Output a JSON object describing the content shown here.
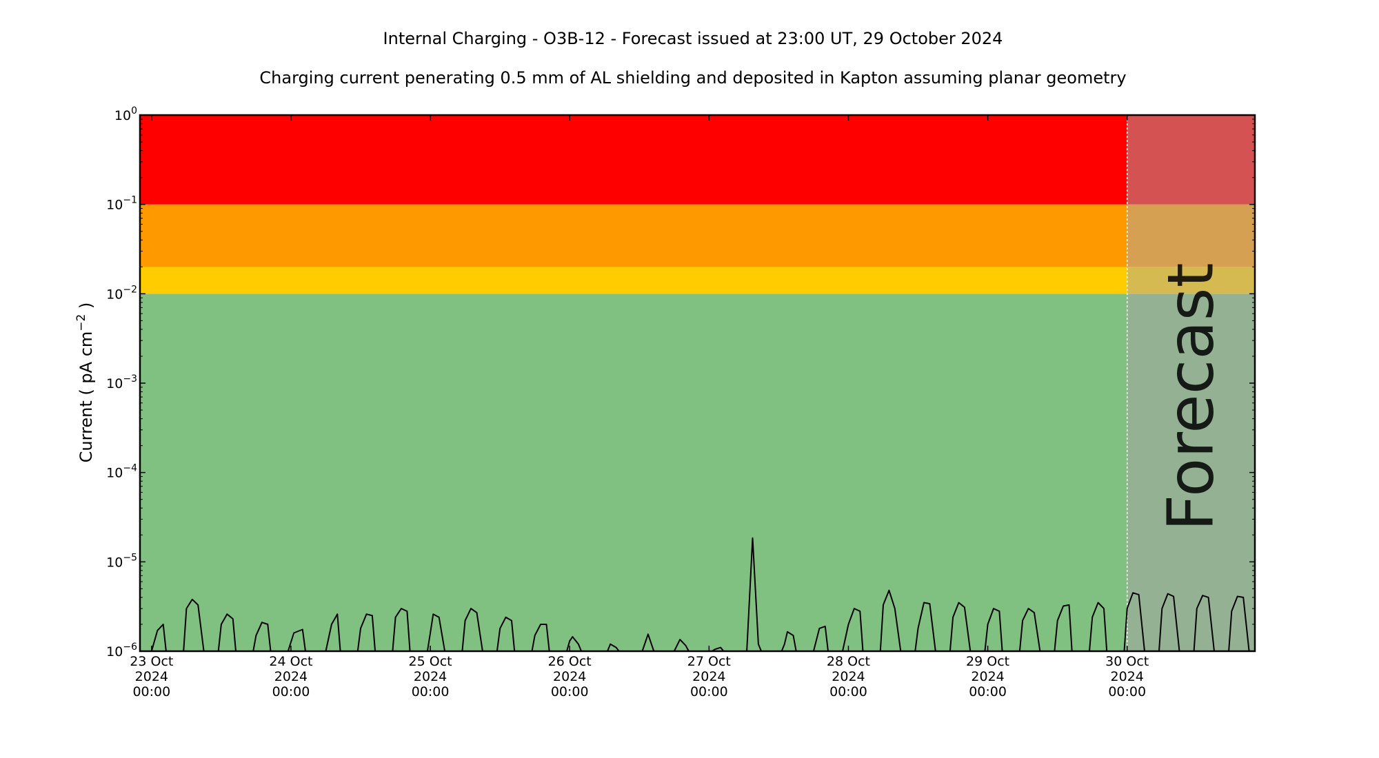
{
  "chart_data": {
    "type": "line",
    "title": "Internal Charging - O3B-12 - Forecast issued at 23:00 UT, 29 October 2024",
    "subtitle": "Charging current penerating 0.5 mm of AL shielding and deposited in Kapton assuming planar geometry",
    "ylabel_main": "Current ( pA cm",
    "ylabel_exp": "−2",
    "ylabel_end": " )",
    "yscale": "log",
    "ylim": [
      1e-06,
      1
    ],
    "y_ticks": [
      {
        "value": 1e-06,
        "base": "10",
        "exp": "−6"
      },
      {
        "value": 1e-05,
        "base": "10",
        "exp": "−5"
      },
      {
        "value": 0.0001,
        "base": "10",
        "exp": "−4"
      },
      {
        "value": 0.001,
        "base": "10",
        "exp": "−3"
      },
      {
        "value": 0.01,
        "base": "10",
        "exp": "−2"
      },
      {
        "value": 0.1,
        "base": "10",
        "exp": "−1"
      },
      {
        "value": 1,
        "base": "10",
        "exp": "0"
      }
    ],
    "xlim": [
      "2024-10-22T22:00",
      "2024-10-30T22:00"
    ],
    "x_ticks": [
      {
        "value": "2024-10-23T00:00",
        "line1": "23 Oct",
        "line2": "2024",
        "line3": "00:00"
      },
      {
        "value": "2024-10-24T00:00",
        "line1": "24 Oct",
        "line2": "2024",
        "line3": "00:00"
      },
      {
        "value": "2024-10-25T00:00",
        "line1": "25 Oct",
        "line2": "2024",
        "line3": "00:00"
      },
      {
        "value": "2024-10-26T00:00",
        "line1": "26 Oct",
        "line2": "2024",
        "line3": "00:00"
      },
      {
        "value": "2024-10-27T00:00",
        "line1": "27 Oct",
        "line2": "2024",
        "line3": "00:00"
      },
      {
        "value": "2024-10-28T00:00",
        "line1": "28 Oct",
        "line2": "2024",
        "line3": "00:00"
      },
      {
        "value": "2024-10-29T00:00",
        "line1": "29 Oct",
        "line2": "2024",
        "line3": "00:00"
      },
      {
        "value": "2024-10-30T00:00",
        "line1": "30 Oct",
        "line2": "2024",
        "line3": "00:00"
      }
    ],
    "forecast_start": "2024-10-30T00:00",
    "forecast_label": "Forecast",
    "grid": false,
    "bands": [
      {
        "level": "green",
        "from": 1e-06,
        "to": 0.01,
        "color": "#80c080",
        "forecast_color": "#94b194"
      },
      {
        "level": "yellow",
        "from": 0.01,
        "to": 0.02,
        "color": "#ffcc00",
        "forecast_color": "#d5ba52"
      },
      {
        "level": "orange",
        "from": 0.02,
        "to": 0.1,
        "color": "#ff9900",
        "forecast_color": "#d5a052"
      },
      {
        "level": "red",
        "from": 0.1,
        "to": 1,
        "color": "#ff0000",
        "forecast_color": "#d55252"
      }
    ],
    "series": [
      {
        "color": "#000000",
        "points": [
          [
            "2024-10-23T00:00",
            1e-06
          ],
          [
            "2024-10-23T01:00",
            1.7e-06
          ],
          [
            "2024-10-23T02:00",
            2e-06
          ],
          [
            "2024-10-23T02:30",
            1e-06
          ],
          [
            "2024-10-23T05:30",
            1e-06
          ],
          [
            "2024-10-23T06:00",
            3e-06
          ],
          [
            "2024-10-23T07:00",
            3.8e-06
          ],
          [
            "2024-10-23T08:00",
            3.3e-06
          ],
          [
            "2024-10-23T09:00",
            1e-06
          ],
          [
            "2024-10-23T11:30",
            1e-06
          ],
          [
            "2024-10-23T12:00",
            2e-06
          ],
          [
            "2024-10-23T13:00",
            2.6e-06
          ],
          [
            "2024-10-23T14:00",
            2.3e-06
          ],
          [
            "2024-10-23T14:30",
            1e-06
          ],
          [
            "2024-10-23T17:30",
            1e-06
          ],
          [
            "2024-10-23T18:00",
            1.5e-06
          ],
          [
            "2024-10-23T19:00",
            2.1e-06
          ],
          [
            "2024-10-23T20:00",
            2e-06
          ],
          [
            "2024-10-23T20:30",
            1e-06
          ],
          [
            "2024-10-23T23:30",
            1e-06
          ],
          [
            "2024-10-24T00:30",
            1.6e-06
          ],
          [
            "2024-10-24T02:00",
            1.75e-06
          ],
          [
            "2024-10-24T02:30",
            1e-06
          ],
          [
            "2024-10-24T06:00",
            1e-06
          ],
          [
            "2024-10-24T07:00",
            2e-06
          ],
          [
            "2024-10-24T08:00",
            2.6e-06
          ],
          [
            "2024-10-24T08:30",
            1e-06
          ],
          [
            "2024-10-24T11:30",
            1e-06
          ],
          [
            "2024-10-24T12:00",
            1.8e-06
          ],
          [
            "2024-10-24T13:00",
            2.6e-06
          ],
          [
            "2024-10-24T14:00",
            2.5e-06
          ],
          [
            "2024-10-24T14:30",
            1e-06
          ],
          [
            "2024-10-24T17:30",
            1e-06
          ],
          [
            "2024-10-24T18:00",
            2.4e-06
          ],
          [
            "2024-10-24T19:00",
            3e-06
          ],
          [
            "2024-10-24T20:00",
            2.8e-06
          ],
          [
            "2024-10-24T20:30",
            1e-06
          ],
          [
            "2024-10-24T23:30",
            1e-06
          ],
          [
            "2024-10-25T00:00",
            1.6e-06
          ],
          [
            "2024-10-25T00:30",
            2.6e-06
          ],
          [
            "2024-10-25T01:30",
            2.4e-06
          ],
          [
            "2024-10-25T02:30",
            1e-06
          ],
          [
            "2024-10-25T05:30",
            1e-06
          ],
          [
            "2024-10-25T06:00",
            2.2e-06
          ],
          [
            "2024-10-25T07:00",
            3e-06
          ],
          [
            "2024-10-25T08:00",
            2.7e-06
          ],
          [
            "2024-10-25T09:00",
            1e-06
          ],
          [
            "2024-10-25T11:30",
            1e-06
          ],
          [
            "2024-10-25T12:00",
            1.8e-06
          ],
          [
            "2024-10-25T13:00",
            2.4e-06
          ],
          [
            "2024-10-25T14:00",
            2.2e-06
          ],
          [
            "2024-10-25T14:30",
            1e-06
          ],
          [
            "2024-10-25T17:30",
            1e-06
          ],
          [
            "2024-10-25T18:00",
            1.5e-06
          ],
          [
            "2024-10-25T19:00",
            2e-06
          ],
          [
            "2024-10-25T20:00",
            2e-06
          ],
          [
            "2024-10-25T20:30",
            1e-06
          ],
          [
            "2024-10-25T23:30",
            1e-06
          ],
          [
            "2024-10-26T00:00",
            1.3e-06
          ],
          [
            "2024-10-26T00:30",
            1.45e-06
          ],
          [
            "2024-10-26T01:30",
            1.2e-06
          ],
          [
            "2024-10-26T02:00",
            1e-06
          ],
          [
            "2024-10-26T06:30",
            1e-06
          ],
          [
            "2024-10-26T07:00",
            1.2e-06
          ],
          [
            "2024-10-26T08:00",
            1.1e-06
          ],
          [
            "2024-10-26T08:30",
            1e-06
          ],
          [
            "2024-10-26T12:30",
            1e-06
          ],
          [
            "2024-10-26T13:30",
            1.55e-06
          ],
          [
            "2024-10-26T14:30",
            1e-06
          ],
          [
            "2024-10-26T18:00",
            1e-06
          ],
          [
            "2024-10-26T19:00",
            1.35e-06
          ],
          [
            "2024-10-26T20:00",
            1.15e-06
          ],
          [
            "2024-10-26T20:30",
            1e-06
          ],
          [
            "2024-10-27T00:30",
            1e-06
          ],
          [
            "2024-10-27T01:00",
            1.05e-06
          ],
          [
            "2024-10-27T02:00",
            1.1e-06
          ],
          [
            "2024-10-27T02:30",
            1e-06
          ],
          [
            "2024-10-27T06:30",
            1e-06
          ],
          [
            "2024-10-27T07:30",
            1.85e-05
          ],
          [
            "2024-10-27T08:30",
            1.2e-06
          ],
          [
            "2024-10-27T09:00",
            1e-06
          ],
          [
            "2024-10-27T12:30",
            1e-06
          ],
          [
            "2024-10-27T13:00",
            1.2e-06
          ],
          [
            "2024-10-27T13:30",
            1.65e-06
          ],
          [
            "2024-10-27T14:30",
            1.5e-06
          ],
          [
            "2024-10-27T15:00",
            1e-06
          ],
          [
            "2024-10-27T18:00",
            1e-06
          ],
          [
            "2024-10-27T19:00",
            1.8e-06
          ],
          [
            "2024-10-27T20:00",
            1.9e-06
          ],
          [
            "2024-10-27T20:30",
            1e-06
          ],
          [
            "2024-10-27T23:00",
            1e-06
          ],
          [
            "2024-10-28T00:00",
            2e-06
          ],
          [
            "2024-10-28T01:00",
            3e-06
          ],
          [
            "2024-10-28T02:00",
            2.8e-06
          ],
          [
            "2024-10-28T02:30",
            1e-06
          ],
          [
            "2024-10-28T05:30",
            1e-06
          ],
          [
            "2024-10-28T06:00",
            3.3e-06
          ],
          [
            "2024-10-28T07:00",
            4.8e-06
          ],
          [
            "2024-10-28T08:00",
            3e-06
          ],
          [
            "2024-10-28T09:00",
            1e-06
          ],
          [
            "2024-10-28T11:30",
            1e-06
          ],
          [
            "2024-10-28T12:00",
            1.8e-06
          ],
          [
            "2024-10-28T13:00",
            3.5e-06
          ],
          [
            "2024-10-28T14:00",
            3.4e-06
          ],
          [
            "2024-10-28T15:00",
            1e-06
          ],
          [
            "2024-10-28T17:30",
            1e-06
          ],
          [
            "2024-10-28T18:00",
            2.4e-06
          ],
          [
            "2024-10-28T19:00",
            3.5e-06
          ],
          [
            "2024-10-28T20:00",
            3.1e-06
          ],
          [
            "2024-10-28T21:00",
            1e-06
          ],
          [
            "2024-10-28T23:30",
            1e-06
          ],
          [
            "2024-10-29T00:00",
            2e-06
          ],
          [
            "2024-10-29T01:00",
            3e-06
          ],
          [
            "2024-10-29T02:00",
            2.8e-06
          ],
          [
            "2024-10-29T02:30",
            1e-06
          ],
          [
            "2024-10-29T05:30",
            1e-06
          ],
          [
            "2024-10-29T06:00",
            2.2e-06
          ],
          [
            "2024-10-29T07:00",
            3e-06
          ],
          [
            "2024-10-29T08:00",
            2.7e-06
          ],
          [
            "2024-10-29T09:00",
            1e-06
          ],
          [
            "2024-10-29T11:30",
            1e-06
          ],
          [
            "2024-10-29T12:00",
            2.2e-06
          ],
          [
            "2024-10-29T13:00",
            3.2e-06
          ],
          [
            "2024-10-29T14:00",
            3.3e-06
          ],
          [
            "2024-10-29T14:30",
            1e-06
          ],
          [
            "2024-10-29T17:30",
            1e-06
          ],
          [
            "2024-10-29T18:00",
            2.4e-06
          ],
          [
            "2024-10-29T19:00",
            3.5e-06
          ],
          [
            "2024-10-29T20:00",
            3e-06
          ],
          [
            "2024-10-29T20:30",
            1e-06
          ],
          [
            "2024-10-29T23:30",
            1e-06
          ],
          [
            "2024-10-30T00:00",
            3e-06
          ],
          [
            "2024-10-30T01:00",
            4.5e-06
          ],
          [
            "2024-10-30T02:00",
            4.3e-06
          ],
          [
            "2024-10-30T03:00",
            1e-06
          ],
          [
            "2024-10-30T05:30",
            1e-06
          ],
          [
            "2024-10-30T06:00",
            3e-06
          ],
          [
            "2024-10-30T07:00",
            4.4e-06
          ],
          [
            "2024-10-30T08:00",
            4.1e-06
          ],
          [
            "2024-10-30T09:00",
            1e-06
          ],
          [
            "2024-10-30T11:30",
            1e-06
          ],
          [
            "2024-10-30T12:00",
            3e-06
          ],
          [
            "2024-10-30T13:00",
            4.2e-06
          ],
          [
            "2024-10-30T14:00",
            4e-06
          ],
          [
            "2024-10-30T15:00",
            1e-06
          ],
          [
            "2024-10-30T17:30",
            1e-06
          ],
          [
            "2024-10-30T18:00",
            2.8e-06
          ],
          [
            "2024-10-30T19:00",
            4.1e-06
          ],
          [
            "2024-10-30T20:00",
            4e-06
          ],
          [
            "2024-10-30T21:00",
            1e-06
          ]
        ]
      }
    ]
  }
}
